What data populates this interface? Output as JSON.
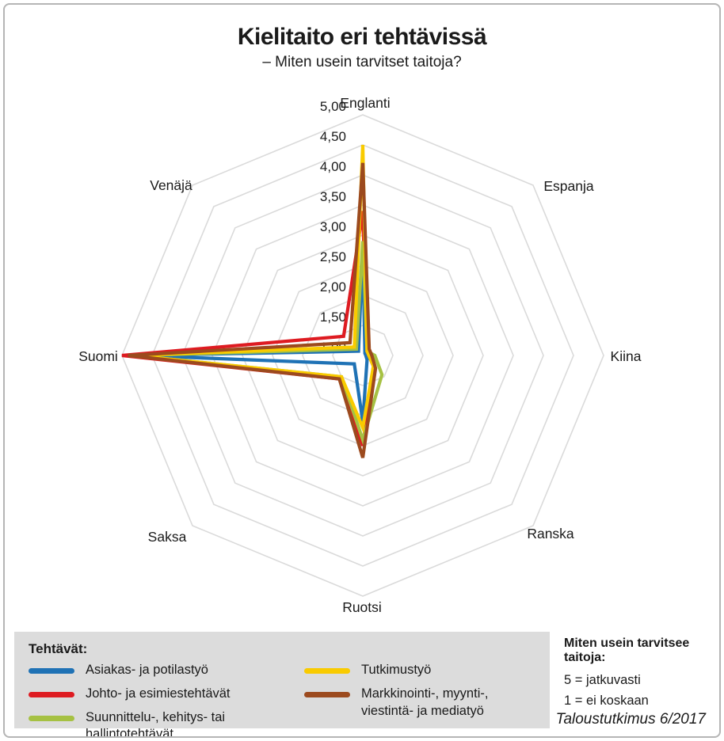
{
  "title": "Kielitaito eri tehtävissä",
  "subtitle": "– Miten usein tarvitset taitoja?",
  "source": "Taloustutkimus 6/2017",
  "legend": {
    "heading": "Tehtävät:"
  },
  "scale_box": {
    "heading": "Miten usein tarvitsee taitoja:",
    "lines": [
      "5 = jatkuvasti",
      "1 = ei koskaan"
    ]
  },
  "colors": {
    "grid": "#dadada",
    "legend_panel": "#dcdcdc",
    "text": "#1a1a1a"
  },
  "chart_data": {
    "type": "radar",
    "categories": [
      "Englanti",
      "Espanja",
      "Kiina",
      "Ranska",
      "Ruotsi",
      "Saksa",
      "Suomi",
      "Venäjä"
    ],
    "scale": {
      "min": 1,
      "max": 5,
      "step": 0.5
    },
    "tick_labels": [
      "5,00",
      "4,50",
      "4,00",
      "3,50",
      "3,00",
      "2,50",
      "2,00",
      "1,50",
      "1,00"
    ],
    "grid": true,
    "legend_position": "bottom",
    "series": [
      {
        "name": "Asiakas- ja potilastyö",
        "color": "#1F72B5",
        "values": [
          2.8,
          1.05,
          1.05,
          1.1,
          2.1,
          1.2,
          4.75,
          1.1
        ]
      },
      {
        "name": "Johto- ja esimiestehtävät",
        "color": "#DE1B21",
        "values": [
          3.4,
          1.1,
          1.1,
          1.25,
          2.5,
          1.55,
          5.0,
          1.45
        ]
      },
      {
        "name": "Suunnittelu-, kehitys- tai hallintotehtävät",
        "color": "#A6C143",
        "values": [
          2.9,
          1.1,
          1.2,
          1.45,
          2.4,
          1.5,
          4.8,
          1.15
        ]
      },
      {
        "name": "Tutkimustyö",
        "color": "#F9CB00",
        "values": [
          4.5,
          1.1,
          1.1,
          1.25,
          2.2,
          1.5,
          4.8,
          1.2
        ]
      },
      {
        "name": "Markkinointi-, myynti-, viestintä- ja mediatyö",
        "color": "#9C4A1E",
        "values": [
          4.2,
          1.15,
          1.15,
          1.3,
          2.7,
          1.55,
          4.9,
          1.3
        ]
      }
    ]
  }
}
